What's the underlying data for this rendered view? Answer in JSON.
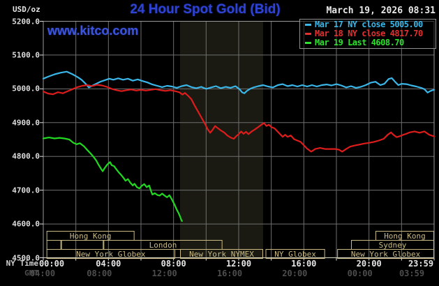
{
  "header": {
    "units_label": "USD/oz",
    "title": "24 Hour Spot Gold (Bid)",
    "watermark": "www.kitco.com",
    "timestamp": "March 19, 2026 08:31"
  },
  "colors": {
    "background": "#000000",
    "title_blue": "#2e43d4",
    "grid": "#6f6f6f",
    "plot_border": "#9a9a9a",
    "bottom_axis": "#d9d9c4",
    "highlight_band": "#1a1a12",
    "session_box": "#c9ba84",
    "ny_label": "#e6e6e6",
    "gmt_label": "#4d4d4d",
    "mar17": "#3ab6e8",
    "mar18": "#dd1c1c",
    "mar19": "#21d921"
  },
  "legend": {
    "items": [
      {
        "label": "Mar 17 NY close 5005.00",
        "color": "#3ab6e8"
      },
      {
        "label": "Mar 18 NY close 4817.70",
        "color": "#e23030"
      },
      {
        "label": "Mar 19 Last 4608.70",
        "color": "#2ee22e"
      }
    ]
  },
  "axes": {
    "ny_time_label": "NY Time",
    "gmt_label": "GMT",
    "ny_ticks": [
      "00:00",
      "04:00",
      "08:00",
      "12:00",
      "16:00",
      "20:00",
      "23:59"
    ],
    "gmt_ticks": [
      "04:00",
      "08:00",
      "12:00",
      "16:00",
      "20:00",
      "00:00",
      "03:59"
    ],
    "y_ticks": [
      "5200.0",
      "5100.0",
      "5000.0",
      "4900.0",
      "4800.0",
      "4700.0",
      "4600.0",
      "4500.0"
    ]
  },
  "sessions": {
    "rows": [
      {
        "row": 0,
        "start": 0.2,
        "end": 5.6,
        "label": "Hong Kong"
      },
      {
        "row": 0,
        "start": 20.4,
        "end": 24,
        "label": "Hong Kong"
      },
      {
        "row": 1,
        "start": 0.2,
        "end": 1.1,
        "label": ""
      },
      {
        "row": 1,
        "start": 1.1,
        "end": 3.7,
        "label": ""
      },
      {
        "row": 1,
        "start": 3.7,
        "end": 11.0,
        "label": "London"
      },
      {
        "row": 1,
        "start": 18.9,
        "end": 24,
        "label": "Sydney"
      },
      {
        "row": 2,
        "start": 0.2,
        "end": 8.1,
        "label": "New York Globex"
      },
      {
        "row": 2,
        "start": 8.4,
        "end": 13.5,
        "label": "New York NYMEX"
      },
      {
        "row": 2,
        "start": 13.65,
        "end": 17.3,
        "label": "NY Globex"
      },
      {
        "row": 2,
        "start": 18.05,
        "end": 24,
        "label": "New York Globex"
      }
    ]
  },
  "chart_data": {
    "type": "line",
    "title": "24 Hour Spot Gold (Bid)",
    "xlabel": "NY Time (hours)",
    "ylabel": "USD/oz",
    "xlim": [
      0,
      24
    ],
    "ylim": [
      4500,
      5200
    ],
    "y_grid_step": 100,
    "x_grid_step_hours": 2,
    "grid": true,
    "legend_position": "top-right",
    "highlight_band_hours": [
      8.4,
      13.5
    ],
    "series": [
      {
        "name": "Mar 17",
        "color": "#3ab6e8",
        "points": [
          [
            0,
            5030
          ],
          [
            0.3,
            5036
          ],
          [
            0.7,
            5043
          ],
          [
            1.1,
            5048
          ],
          [
            1.45,
            5051
          ],
          [
            1.8,
            5043
          ],
          [
            2.1,
            5035
          ],
          [
            2.35,
            5027
          ],
          [
            2.6,
            5015
          ],
          [
            2.8,
            5004
          ],
          [
            3.0,
            5009
          ],
          [
            3.2,
            5014
          ],
          [
            3.5,
            5021
          ],
          [
            3.8,
            5026
          ],
          [
            4.05,
            5030
          ],
          [
            4.3,
            5027
          ],
          [
            4.6,
            5031
          ],
          [
            4.9,
            5027
          ],
          [
            5.2,
            5030
          ],
          [
            5.5,
            5024
          ],
          [
            5.8,
            5028
          ],
          [
            6.1,
            5023
          ],
          [
            6.4,
            5019
          ],
          [
            6.7,
            5013
          ],
          [
            7.0,
            5009
          ],
          [
            7.3,
            5005
          ],
          [
            7.6,
            5009
          ],
          [
            7.9,
            5007
          ],
          [
            8.2,
            5003
          ],
          [
            8.5,
            5008
          ],
          [
            8.8,
            5011
          ],
          [
            9.1,
            5005
          ],
          [
            9.4,
            5002
          ],
          [
            9.7,
            5006
          ],
          [
            10.0,
            5000
          ],
          [
            10.3,
            5004
          ],
          [
            10.6,
            5008
          ],
          [
            10.9,
            5002
          ],
          [
            11.2,
            5006
          ],
          [
            11.5,
            5003
          ],
          [
            11.8,
            5008
          ],
          [
            12.05,
            4999
          ],
          [
            12.2,
            4990
          ],
          [
            12.35,
            4987
          ],
          [
            12.5,
            4994
          ],
          [
            12.7,
            5000
          ],
          [
            12.9,
            5004
          ],
          [
            13.2,
            5008
          ],
          [
            13.5,
            5011
          ],
          [
            13.8,
            5007
          ],
          [
            14.1,
            5004
          ],
          [
            14.4,
            5011
          ],
          [
            14.7,
            5014
          ],
          [
            15.0,
            5008
          ],
          [
            15.3,
            5011
          ],
          [
            15.6,
            5007
          ],
          [
            15.9,
            5011
          ],
          [
            16.2,
            5007
          ],
          [
            16.5,
            5011
          ],
          [
            16.8,
            5007
          ],
          [
            17.1,
            5011
          ],
          [
            17.4,
            5013
          ],
          [
            17.7,
            5010
          ],
          [
            18.0,
            5014
          ],
          [
            18.3,
            5010
          ],
          [
            18.6,
            5004
          ],
          [
            18.9,
            5008
          ],
          [
            19.2,
            5003
          ],
          [
            19.5,
            5006
          ],
          [
            19.8,
            5011
          ],
          [
            20.1,
            5018
          ],
          [
            20.4,
            5021
          ],
          [
            20.7,
            5011
          ],
          [
            20.95,
            5015
          ],
          [
            21.2,
            5029
          ],
          [
            21.4,
            5032
          ],
          [
            21.6,
            5021
          ],
          [
            21.8,
            5011
          ],
          [
            22.0,
            5015
          ],
          [
            22.3,
            5014
          ],
          [
            22.6,
            5010
          ],
          [
            22.9,
            5007
          ],
          [
            23.2,
            5003
          ],
          [
            23.4,
            4999
          ],
          [
            23.6,
            4989
          ],
          [
            23.75,
            4993
          ],
          [
            23.9,
            4996
          ],
          [
            24,
            4997
          ]
        ]
      },
      {
        "name": "Mar 18",
        "color": "#dd1c1c",
        "points": [
          [
            0,
            4992
          ],
          [
            0.3,
            4986
          ],
          [
            0.6,
            4984
          ],
          [
            0.9,
            4990
          ],
          [
            1.2,
            4987
          ],
          [
            1.5,
            4993
          ],
          [
            1.8,
            4999
          ],
          [
            2.1,
            5005
          ],
          [
            2.4,
            5009
          ],
          [
            2.7,
            5011
          ],
          [
            3.0,
            5008
          ],
          [
            3.3,
            5012
          ],
          [
            3.6,
            5010
          ],
          [
            3.9,
            5006
          ],
          [
            4.2,
            5000
          ],
          [
            4.5,
            4996
          ],
          [
            4.8,
            4993
          ],
          [
            5.1,
            4996
          ],
          [
            5.4,
            4998
          ],
          [
            5.7,
            4995
          ],
          [
            6.0,
            4997
          ],
          [
            6.3,
            4995
          ],
          [
            6.6,
            4997
          ],
          [
            6.9,
            4999
          ],
          [
            7.2,
            4996
          ],
          [
            7.5,
            4994
          ],
          [
            7.8,
            4996
          ],
          [
            8.1,
            4993
          ],
          [
            8.35,
            4990
          ],
          [
            8.55,
            4983
          ],
          [
            8.7,
            4988
          ],
          [
            8.9,
            4979
          ],
          [
            9.1,
            4969
          ],
          [
            9.3,
            4950
          ],
          [
            9.5,
            4933
          ],
          [
            9.7,
            4916
          ],
          [
            9.9,
            4899
          ],
          [
            10.1,
            4880
          ],
          [
            10.25,
            4870
          ],
          [
            10.4,
            4879
          ],
          [
            10.55,
            4890
          ],
          [
            10.7,
            4884
          ],
          [
            10.9,
            4877
          ],
          [
            11.1,
            4871
          ],
          [
            11.3,
            4862
          ],
          [
            11.5,
            4856
          ],
          [
            11.7,
            4852
          ],
          [
            11.85,
            4860
          ],
          [
            12.0,
            4866
          ],
          [
            12.15,
            4874
          ],
          [
            12.3,
            4867
          ],
          [
            12.45,
            4873
          ],
          [
            12.6,
            4866
          ],
          [
            12.8,
            4874
          ],
          [
            13.0,
            4880
          ],
          [
            13.2,
            4887
          ],
          [
            13.4,
            4894
          ],
          [
            13.55,
            4899
          ],
          [
            13.7,
            4890
          ],
          [
            13.85,
            4894
          ],
          [
            14.0,
            4887
          ],
          [
            14.2,
            4883
          ],
          [
            14.5,
            4868
          ],
          [
            14.7,
            4858
          ],
          [
            14.85,
            4864
          ],
          [
            15.0,
            4858
          ],
          [
            15.2,
            4862
          ],
          [
            15.4,
            4851
          ],
          [
            15.6,
            4847
          ],
          [
            15.8,
            4843
          ],
          [
            16.0,
            4833
          ],
          [
            16.2,
            4823
          ],
          [
            16.45,
            4814
          ],
          [
            16.7,
            4822
          ],
          [
            17.0,
            4825
          ],
          [
            17.3,
            4822
          ],
          [
            17.6,
            4822
          ],
          [
            17.9,
            4822
          ],
          [
            18.15,
            4820
          ],
          [
            18.35,
            4814
          ],
          [
            18.6,
            4822
          ],
          [
            18.85,
            4829
          ],
          [
            19.1,
            4832
          ],
          [
            19.4,
            4835
          ],
          [
            19.7,
            4838
          ],
          [
            20.0,
            4840
          ],
          [
            20.3,
            4843
          ],
          [
            20.6,
            4847
          ],
          [
            20.9,
            4852
          ],
          [
            21.15,
            4864
          ],
          [
            21.35,
            4871
          ],
          [
            21.5,
            4864
          ],
          [
            21.7,
            4857
          ],
          [
            21.9,
            4860
          ],
          [
            22.1,
            4864
          ],
          [
            22.3,
            4867
          ],
          [
            22.5,
            4871
          ],
          [
            22.8,
            4874
          ],
          [
            23.1,
            4870
          ],
          [
            23.4,
            4874
          ],
          [
            23.7,
            4864
          ],
          [
            24,
            4859
          ]
        ]
      },
      {
        "name": "Mar 19",
        "color": "#21d921",
        "points": [
          [
            0,
            4853
          ],
          [
            0.35,
            4856
          ],
          [
            0.7,
            4853
          ],
          [
            1.0,
            4855
          ],
          [
            1.3,
            4853
          ],
          [
            1.6,
            4850
          ],
          [
            1.85,
            4840
          ],
          [
            2.05,
            4836
          ],
          [
            2.25,
            4839
          ],
          [
            2.5,
            4830
          ],
          [
            2.7,
            4819
          ],
          [
            2.9,
            4809
          ],
          [
            3.1,
            4798
          ],
          [
            3.25,
            4788
          ],
          [
            3.4,
            4775
          ],
          [
            3.55,
            4763
          ],
          [
            3.65,
            4756
          ],
          [
            3.75,
            4764
          ],
          [
            3.9,
            4774
          ],
          [
            4.0,
            4779
          ],
          [
            4.1,
            4783
          ],
          [
            4.2,
            4774
          ],
          [
            4.35,
            4771
          ],
          [
            4.5,
            4761
          ],
          [
            4.65,
            4752
          ],
          [
            4.8,
            4744
          ],
          [
            4.95,
            4735
          ],
          [
            5.05,
            4728
          ],
          [
            5.2,
            4733
          ],
          [
            5.35,
            4722
          ],
          [
            5.5,
            4714
          ],
          [
            5.6,
            4719
          ],
          [
            5.75,
            4709
          ],
          [
            5.9,
            4705
          ],
          [
            6.05,
            4713
          ],
          [
            6.2,
            4718
          ],
          [
            6.35,
            4709
          ],
          [
            6.5,
            4714
          ],
          [
            6.6,
            4700
          ],
          [
            6.7,
            4687
          ],
          [
            6.85,
            4691
          ],
          [
            7.0,
            4686
          ],
          [
            7.15,
            4684
          ],
          [
            7.3,
            4690
          ],
          [
            7.45,
            4684
          ],
          [
            7.6,
            4679
          ],
          [
            7.75,
            4685
          ],
          [
            7.88,
            4674
          ],
          [
            8.0,
            4663
          ],
          [
            8.1,
            4653
          ],
          [
            8.2,
            4642
          ],
          [
            8.3,
            4633
          ],
          [
            8.4,
            4622
          ],
          [
            8.47,
            4613
          ],
          [
            8.52,
            4608.7
          ]
        ]
      }
    ]
  }
}
